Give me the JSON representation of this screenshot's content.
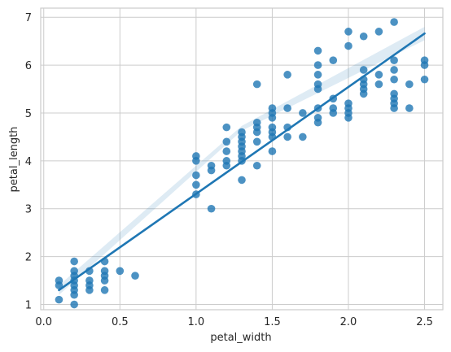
{
  "chart_data": {
    "type": "scatter",
    "xlabel": "petal_width",
    "ylabel": "petal_length",
    "xlim": [
      -0.02,
      2.62
    ],
    "ylim": [
      0.89,
      7.19
    ],
    "xticks": [
      0.0,
      0.5,
      1.0,
      1.5,
      2.0,
      2.5
    ],
    "xtick_labels": [
      "0.0",
      "0.5",
      "1.0",
      "1.5",
      "2.0",
      "2.5"
    ],
    "yticks": [
      1,
      2,
      3,
      4,
      5,
      6,
      7
    ],
    "ytick_labels": [
      "1",
      "2",
      "3",
      "4",
      "5",
      "6",
      "7"
    ],
    "grid": true,
    "colors": {
      "points": "#1f77b4",
      "line": "#1f77b4",
      "band": "#1f77b4",
      "grid": "#cccccc",
      "background": "#ffffff"
    },
    "points": [
      [
        0.1,
        1.1
      ],
      [
        0.1,
        1.4
      ],
      [
        0.1,
        1.5
      ],
      [
        0.2,
        1.0
      ],
      [
        0.2,
        1.2
      ],
      [
        0.2,
        1.3
      ],
      [
        0.2,
        1.4
      ],
      [
        0.2,
        1.5
      ],
      [
        0.2,
        1.6
      ],
      [
        0.2,
        1.7
      ],
      [
        0.2,
        1.9
      ],
      [
        0.3,
        1.3
      ],
      [
        0.3,
        1.4
      ],
      [
        0.3,
        1.5
      ],
      [
        0.3,
        1.7
      ],
      [
        0.4,
        1.3
      ],
      [
        0.4,
        1.5
      ],
      [
        0.4,
        1.6
      ],
      [
        0.4,
        1.7
      ],
      [
        0.4,
        1.9
      ],
      [
        0.5,
        1.7
      ],
      [
        0.6,
        1.6
      ],
      [
        1.0,
        3.3
      ],
      [
        1.0,
        3.5
      ],
      [
        1.0,
        3.7
      ],
      [
        1.0,
        4.0
      ],
      [
        1.0,
        4.1
      ],
      [
        1.1,
        3.0
      ],
      [
        1.1,
        3.8
      ],
      [
        1.1,
        3.9
      ],
      [
        1.2,
        3.9
      ],
      [
        1.2,
        4.0
      ],
      [
        1.2,
        4.2
      ],
      [
        1.2,
        4.4
      ],
      [
        1.2,
        4.7
      ],
      [
        1.3,
        3.6
      ],
      [
        1.3,
        4.0
      ],
      [
        1.3,
        4.1
      ],
      [
        1.3,
        4.2
      ],
      [
        1.3,
        4.3
      ],
      [
        1.3,
        4.4
      ],
      [
        1.3,
        4.5
      ],
      [
        1.3,
        4.6
      ],
      [
        1.4,
        3.9
      ],
      [
        1.4,
        4.4
      ],
      [
        1.4,
        4.6
      ],
      [
        1.4,
        4.7
      ],
      [
        1.4,
        4.8
      ],
      [
        1.4,
        5.6
      ],
      [
        1.5,
        4.2
      ],
      [
        1.5,
        4.5
      ],
      [
        1.5,
        4.6
      ],
      [
        1.5,
        4.7
      ],
      [
        1.5,
        4.9
      ],
      [
        1.5,
        5.0
      ],
      [
        1.5,
        5.1
      ],
      [
        1.6,
        4.5
      ],
      [
        1.6,
        4.7
      ],
      [
        1.6,
        5.1
      ],
      [
        1.6,
        5.8
      ],
      [
        1.7,
        4.5
      ],
      [
        1.7,
        5.0
      ],
      [
        1.8,
        4.8
      ],
      [
        1.8,
        4.9
      ],
      [
        1.8,
        5.1
      ],
      [
        1.8,
        5.5
      ],
      [
        1.8,
        5.6
      ],
      [
        1.8,
        5.8
      ],
      [
        1.8,
        6.0
      ],
      [
        1.8,
        6.3
      ],
      [
        1.9,
        5.0
      ],
      [
        1.9,
        5.1
      ],
      [
        1.9,
        5.3
      ],
      [
        1.9,
        6.1
      ],
      [
        2.0,
        4.9
      ],
      [
        2.0,
        5.0
      ],
      [
        2.0,
        5.1
      ],
      [
        2.0,
        5.2
      ],
      [
        2.0,
        6.4
      ],
      [
        2.0,
        6.7
      ],
      [
        2.1,
        5.4
      ],
      [
        2.1,
        5.5
      ],
      [
        2.1,
        5.6
      ],
      [
        2.1,
        5.7
      ],
      [
        2.1,
        5.9
      ],
      [
        2.1,
        6.6
      ],
      [
        2.2,
        5.6
      ],
      [
        2.2,
        5.8
      ],
      [
        2.2,
        6.7
      ],
      [
        2.3,
        5.1
      ],
      [
        2.3,
        5.2
      ],
      [
        2.3,
        5.3
      ],
      [
        2.3,
        5.4
      ],
      [
        2.3,
        5.7
      ],
      [
        2.3,
        5.9
      ],
      [
        2.3,
        6.1
      ],
      [
        2.3,
        6.9
      ],
      [
        2.4,
        5.1
      ],
      [
        2.4,
        5.6
      ],
      [
        2.5,
        5.7
      ],
      [
        2.5,
        6.0
      ],
      [
        2.5,
        6.1
      ]
    ],
    "regression_line": {
      "x": [
        0.1,
        2.5
      ],
      "y": [
        1.3,
        6.66
      ]
    },
    "confidence_band": {
      "x": [
        0.1,
        1.3,
        2.5
      ],
      "lower": [
        1.2,
        4.63,
        6.52
      ],
      "upper": [
        1.4,
        4.73,
        6.8
      ]
    }
  }
}
